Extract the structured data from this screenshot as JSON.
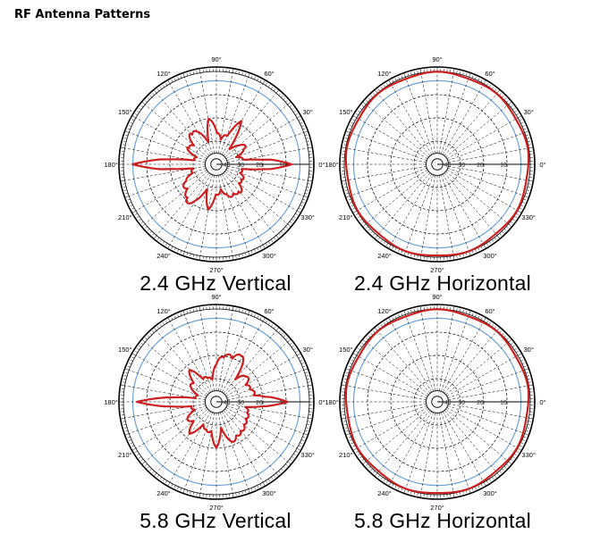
{
  "page": {
    "title": "RF Antenna Patterns"
  },
  "chart_data": [
    {
      "type": "polar",
      "title": "2.4 GHz Vertical",
      "angle_labels": [
        "0°",
        "30°",
        "60°",
        "90°",
        "120°",
        "150°",
        "180°",
        "210°",
        "240°",
        "270°",
        "300°",
        "330°"
      ],
      "radial_labels": [
        "10",
        "20",
        "30",
        "40"
      ],
      "grid": true,
      "series": [
        {
          "color": "#cc1f1f",
          "values_pattern": "vertical_24",
          "theta_deg": [
            0,
            10,
            20,
            30,
            40,
            50,
            60,
            70,
            80,
            90,
            100,
            110,
            120,
            130,
            140,
            150,
            160,
            170,
            180,
            190,
            200,
            210,
            220,
            230,
            240,
            250,
            260,
            270,
            280,
            290,
            300,
            310,
            320,
            330,
            340,
            350
          ],
          "r_norm": [
            0.9,
            0.4,
            0.25,
            0.5,
            0.35,
            0.3,
            0.6,
            0.45,
            0.3,
            0.5,
            0.55,
            0.35,
            0.45,
            0.6,
            0.35,
            0.5,
            0.25,
            0.35,
            1.0,
            0.35,
            0.3,
            0.55,
            0.45,
            0.7,
            0.5,
            0.4,
            0.55,
            0.45,
            0.3,
            0.5,
            0.4,
            0.55,
            0.35,
            0.45,
            0.3,
            0.4
          ]
        }
      ]
    },
    {
      "type": "polar",
      "title": "2.4 GHz Horizontal",
      "angle_labels": [
        "0°",
        "30°",
        "60°",
        "90°",
        "120°",
        "150°",
        "180°",
        "210°",
        "240°",
        "270°",
        "300°",
        "330°"
      ],
      "radial_labels": [
        "10",
        "20",
        "30",
        "40"
      ],
      "grid": true,
      "series": [
        {
          "color": "#cc1f1f",
          "values_pattern": "omni",
          "theta_deg": [
            0,
            90,
            180,
            270
          ],
          "r_norm": [
            0.98,
            0.99,
            0.98,
            0.99
          ]
        }
      ]
    },
    {
      "type": "polar",
      "title": "5.8 GHz Vertical",
      "angle_labels": [
        "0°",
        "30°",
        "60°",
        "90°",
        "120°",
        "150°",
        "180°",
        "210°",
        "240°",
        "270°",
        "300°",
        "330°"
      ],
      "radial_labels": [
        "10",
        "20",
        "30",
        "40"
      ],
      "grid": true,
      "series": [
        {
          "color": "#cc1f1f",
          "values_pattern": "vertical_58",
          "theta_deg": [
            0,
            10,
            20,
            30,
            40,
            50,
            60,
            70,
            80,
            90,
            100,
            110,
            120,
            130,
            140,
            150,
            160,
            170,
            180,
            190,
            200,
            210,
            220,
            230,
            240,
            250,
            260,
            270,
            280,
            290,
            300,
            310,
            320,
            330,
            340,
            350
          ],
          "r_norm": [
            0.85,
            0.45,
            0.55,
            0.4,
            0.6,
            0.35,
            0.8,
            0.55,
            0.7,
            0.45,
            0.35,
            0.3,
            0.4,
            0.5,
            0.45,
            0.35,
            0.3,
            0.25,
            0.95,
            0.3,
            0.35,
            0.4,
            0.45,
            0.5,
            0.4,
            0.35,
            0.45,
            0.55,
            0.4,
            0.5,
            0.6,
            0.45,
            0.55,
            0.4,
            0.5,
            0.35
          ]
        }
      ]
    },
    {
      "type": "polar",
      "title": "5.8 GHz Horizontal",
      "angle_labels": [
        "0°",
        "30°",
        "60°",
        "90°",
        "120°",
        "150°",
        "180°",
        "210°",
        "240°",
        "270°",
        "300°",
        "330°"
      ],
      "radial_labels": [
        "10",
        "20",
        "30",
        "40"
      ],
      "grid": true,
      "series": [
        {
          "color": "#cc1f1f",
          "values_pattern": "omni",
          "theta_deg": [
            0,
            90,
            180,
            270
          ],
          "r_norm": [
            0.98,
            0.99,
            0.98,
            0.99
          ]
        }
      ]
    }
  ],
  "colors": {
    "pattern": "#cc1f1f",
    "reference": "#6fa3d8",
    "grid": "#000000"
  }
}
